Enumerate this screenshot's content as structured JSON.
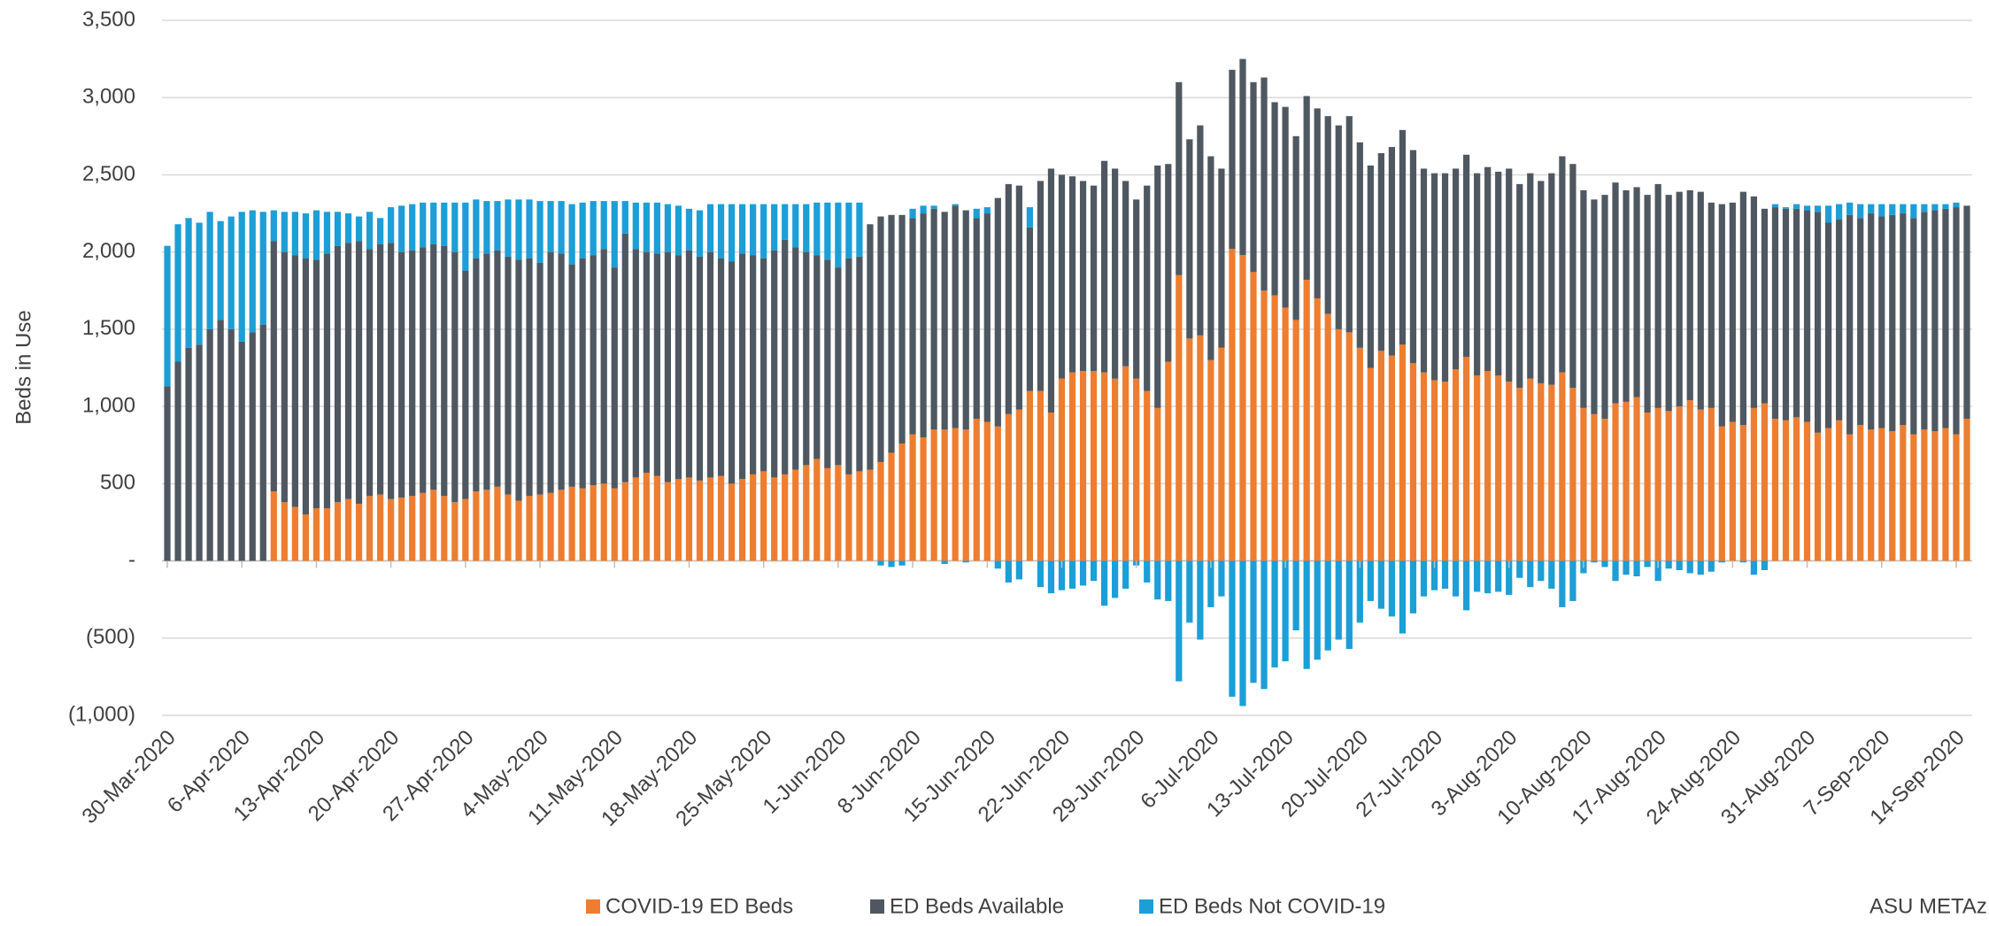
{
  "chart_data": {
    "type": "stacked-bar",
    "y_label": "Beds in Use",
    "note": "ASU METAz",
    "ylim": [
      -1000,
      3500
    ],
    "yticks": [
      {
        "value": -1000,
        "label": "(1,000)"
      },
      {
        "value": -500,
        "label": "(500)"
      },
      {
        "value": 0,
        "label": "-"
      },
      500,
      {
        "value": 1000,
        "label": "1,000"
      },
      {
        "value": 1500,
        "label": "1,500"
      },
      {
        "value": 2000,
        "label": "2,000"
      },
      {
        "value": 2500,
        "label": "2,500"
      },
      {
        "value": 3000,
        "label": "3,000"
      },
      {
        "value": 3500,
        "label": "3,500"
      }
    ],
    "grid": true,
    "legend": "bottom",
    "categories": [
      "30-Mar-2020",
      null,
      null,
      null,
      null,
      null,
      null,
      "6-Apr-2020",
      null,
      null,
      null,
      null,
      null,
      null,
      "13-Apr-2020",
      null,
      null,
      null,
      null,
      null,
      null,
      "20-Apr-2020",
      null,
      null,
      null,
      null,
      null,
      null,
      "27-Apr-2020",
      null,
      null,
      null,
      null,
      null,
      null,
      "4-May-2020",
      null,
      null,
      null,
      null,
      null,
      null,
      "11-May-2020",
      null,
      null,
      null,
      null,
      null,
      null,
      "18-May-2020",
      null,
      null,
      null,
      null,
      null,
      null,
      "25-May-2020",
      null,
      null,
      null,
      null,
      null,
      null,
      "1-Jun-2020",
      null,
      null,
      null,
      null,
      null,
      null,
      "8-Jun-2020",
      null,
      null,
      null,
      null,
      null,
      null,
      "15-Jun-2020",
      null,
      null,
      null,
      null,
      null,
      null,
      "22-Jun-2020",
      null,
      null,
      null,
      null,
      null,
      null,
      "29-Jun-2020",
      null,
      null,
      null,
      null,
      null,
      null,
      "6-Jul-2020",
      null,
      null,
      null,
      null,
      null,
      null,
      "13-Jul-2020",
      null,
      null,
      null,
      null,
      null,
      null,
      "20-Jul-2020",
      null,
      null,
      null,
      null,
      null,
      null,
      "27-Jul-2020",
      null,
      null,
      null,
      null,
      null,
      null,
      "3-Aug-2020",
      null,
      null,
      null,
      null,
      null,
      null,
      "10-Aug-2020",
      null,
      null,
      null,
      null,
      null,
      null,
      "17-Aug-2020",
      null,
      null,
      null,
      null,
      null,
      null,
      "24-Aug-2020",
      null,
      null,
      null,
      null,
      null,
      null,
      "31-Aug-2020",
      null,
      null,
      null,
      null,
      null,
      null,
      "7-Sep-2020",
      null,
      null,
      null,
      null,
      null,
      null,
      "14-Sep-2020",
      null
    ],
    "series": [
      {
        "name": "COVID-19 ED Beds",
        "color": "#ed7d31",
        "values": [
          0,
          0,
          0,
          0,
          0,
          0,
          0,
          0,
          0,
          0,
          450,
          380,
          350,
          300,
          340,
          340,
          380,
          400,
          370,
          420,
          430,
          400,
          410,
          420,
          440,
          460,
          420,
          380,
          400,
          450,
          460,
          480,
          430,
          390,
          420,
          430,
          440,
          460,
          480,
          470,
          490,
          500,
          470,
          510,
          540,
          570,
          550,
          510,
          530,
          540,
          520,
          540,
          550,
          500,
          530,
          560,
          580,
          540,
          560,
          590,
          620,
          660,
          600,
          620,
          560,
          580,
          590,
          640,
          700,
          760,
          820,
          800,
          850,
          850,
          860,
          850,
          920,
          900,
          870,
          950,
          980,
          1100,
          1100,
          960,
          1180,
          1220,
          1230,
          1230,
          1220,
          1180,
          1260,
          1180,
          1100,
          990,
          1290,
          1850,
          1440,
          1460,
          1300,
          1380,
          2020,
          1980,
          1870,
          1750,
          1720,
          1640,
          1560,
          1820,
          1700,
          1600,
          1500,
          1480,
          1380,
          1250,
          1360,
          1330,
          1400,
          1280,
          1220,
          1170,
          1160,
          1240,
          1320,
          1200,
          1230,
          1200,
          1160,
          1120,
          1180,
          1150,
          1140,
          1220,
          1120,
          990,
          950,
          920,
          1020,
          1030,
          1060,
          960,
          990,
          970,
          1000,
          1040,
          980,
          990,
          870,
          900,
          880,
          990,
          1020,
          920,
          910,
          930,
          900,
          830,
          860,
          910,
          820,
          880,
          850,
          860,
          840,
          880,
          820,
          850,
          840,
          860,
          820,
          920
        ]
      },
      {
        "name": "ED Beds Available",
        "color": "#4f5861",
        "values": [
          1130,
          1290,
          1380,
          1400,
          1500,
          1560,
          1500,
          1420,
          1480,
          1530,
          1620,
          1620,
          1630,
          1660,
          1610,
          1650,
          1660,
          1660,
          1700,
          1600,
          1620,
          1660,
          1590,
          1590,
          1590,
          1590,
          1620,
          1620,
          1480,
          1510,
          1530,
          1530,
          1540,
          1560,
          1540,
          1500,
          1560,
          1530,
          1440,
          1490,
          1490,
          1520,
          1430,
          1610,
          1480,
          1430,
          1440,
          1490,
          1450,
          1470,
          1450,
          1460,
          1410,
          1440,
          1460,
          1420,
          1380,
          1470,
          1520,
          1440,
          1380,
          1320,
          1350,
          1280,
          1400,
          1390,
          1590,
          1590,
          1540,
          1480,
          1400,
          1450,
          1430,
          1410,
          1440,
          1420,
          1300,
          1350,
          1480,
          1490,
          1450,
          1060,
          1360,
          1580,
          1320,
          1270,
          1230,
          1200,
          1370,
          1360,
          1200,
          1160,
          1330,
          1570,
          1280,
          1250,
          1290,
          1360,
          1320,
          1160,
          1160,
          1270,
          1230,
          1380,
          1250,
          1300,
          1190,
          1190,
          1230,
          1280,
          1320,
          1400,
          1330,
          1310,
          1280,
          1350,
          1390,
          1380,
          1320,
          1340,
          1350,
          1300,
          1310,
          1310,
          1320,
          1320,
          1380,
          1320,
          1330,
          1310,
          1370,
          1400,
          1450,
          1410,
          1390,
          1450,
          1430,
          1370,
          1360,
          1410,
          1450,
          1400,
          1390,
          1360,
          1410,
          1330,
          1440,
          1420,
          1510,
          1370,
          1260,
          1370,
          1370,
          1350,
          1370,
          1430,
          1330,
          1300,
          1420,
          1340,
          1400,
          1370,
          1400,
          1370,
          1400,
          1410,
          1430,
          1420,
          1470,
          1380
        ]
      },
      {
        "name": "ED Beds Not COVID-19",
        "color": "#1c9ed6",
        "values": [
          910,
          890,
          840,
          790,
          760,
          640,
          730,
          840,
          790,
          730,
          200,
          260,
          280,
          290,
          320,
          270,
          220,
          190,
          160,
          240,
          170,
          230,
          300,
          300,
          290,
          270,
          280,
          320,
          440,
          380,
          340,
          320,
          370,
          390,
          380,
          400,
          330,
          340,
          390,
          360,
          350,
          310,
          430,
          210,
          300,
          320,
          330,
          310,
          320,
          270,
          300,
          310,
          350,
          370,
          320,
          330,
          350,
          300,
          230,
          280,
          310,
          340,
          370,
          420,
          360,
          350,
          0,
          -30,
          -40,
          -30,
          60,
          50,
          20,
          -20,
          10,
          -10,
          60,
          40,
          -50,
          -140,
          -120,
          130,
          -170,
          -210,
          -190,
          -180,
          -160,
          -130,
          -290,
          -240,
          -180,
          -30,
          -140,
          -250,
          -260,
          -780,
          -400,
          -510,
          -300,
          -230,
          -880,
          -940,
          -790,
          -830,
          -690,
          -650,
          -450,
          -700,
          -640,
          -580,
          -510,
          -570,
          -400,
          -260,
          -310,
          -360,
          -470,
          -340,
          -230,
          -190,
          -180,
          -230,
          -320,
          -200,
          -210,
          -200,
          -220,
          -110,
          -170,
          -130,
          -180,
          -300,
          -260,
          -80,
          -10,
          -40,
          -130,
          -90,
          -100,
          -40,
          -130,
          -50,
          -60,
          -80,
          -90,
          -70,
          -10,
          0,
          -10,
          -90,
          -60,
          20,
          10,
          30,
          30,
          40,
          110,
          100,
          80,
          90,
          60,
          80,
          70,
          60,
          90,
          50,
          40,
          30,
          30,
          0
        ]
      }
    ]
  }
}
